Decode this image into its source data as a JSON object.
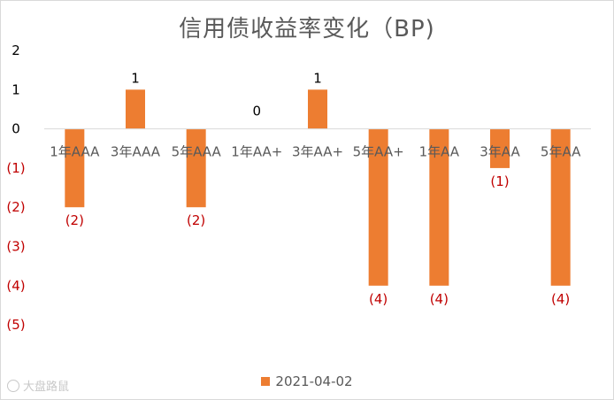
{
  "chart_data": {
    "type": "bar",
    "title": "信用债收益率变化（BP)",
    "categories": [
      "1年AAA",
      "3年AAA",
      "5年AAA",
      "1年AA+",
      "3年AA+",
      "5年AA+",
      "1年AA",
      "3年AA",
      "5年AA"
    ],
    "series": [
      {
        "name": "2021-04-02",
        "values": [
          -2,
          1,
          -2,
          0,
          1,
          -4,
          -4,
          -1,
          -4
        ],
        "color": "#ed7d31"
      }
    ],
    "data_labels": [
      "(2)",
      "1",
      "(2)",
      "0",
      "1",
      "(4)",
      "(4)",
      "(1)",
      "(4)"
    ],
    "yticks": [
      2,
      1,
      0,
      -1,
      -2,
      -3,
      -4,
      -5
    ],
    "ytick_labels": [
      "2",
      "1",
      "0",
      "(1)",
      "(2)",
      "(3)",
      "(4)",
      "(5)"
    ],
    "ylim": [
      -5,
      2
    ],
    "negative_label_color": "#c00000",
    "grid": false,
    "legend_position": "bottom"
  },
  "watermark": {
    "text": "大盘路鼠"
  }
}
